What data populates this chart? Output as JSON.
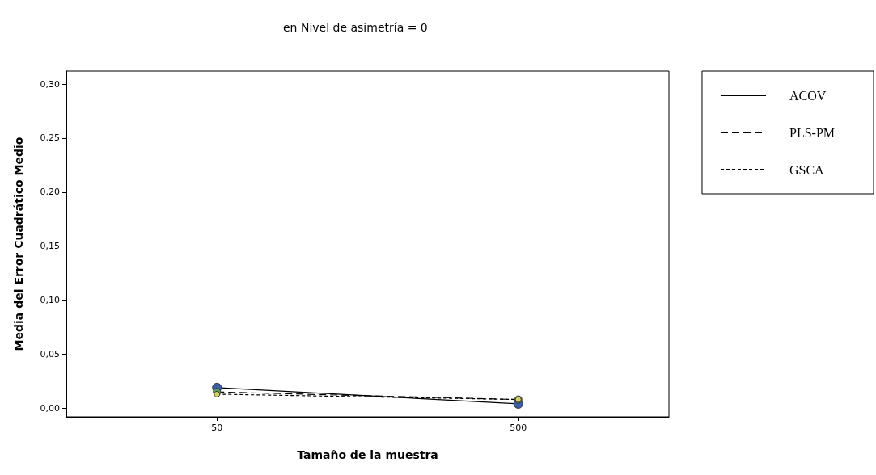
{
  "chart_data": {
    "type": "line",
    "title": "en Nivel de asimetría = 0",
    "xlabel": "Tamaño de la muestra",
    "ylabel": "Media del Error Cuadrático Medio",
    "categories": [
      "50",
      "500"
    ],
    "series": [
      {
        "name": "ACOV",
        "color": "#3a5fa8",
        "line_style": "solid",
        "values": [
          0.019,
          0.004
        ]
      },
      {
        "name": "PLS-PM",
        "color": "#5aa05a",
        "line_style": "dashed",
        "values": [
          0.015,
          0.008
        ]
      },
      {
        "name": "GSCA",
        "color": "#d8cf5a",
        "line_style": "dotted",
        "values": [
          0.013,
          0.008
        ]
      }
    ],
    "ylim": [
      -0.008,
      0.312
    ],
    "yticks": [
      {
        "value": 0,
        "label": "0,00"
      },
      {
        "value": 0.05,
        "label": "0,05"
      },
      {
        "value": 0.1,
        "label": "0,10"
      },
      {
        "value": 0.15,
        "label": "0,15"
      },
      {
        "value": 0.2,
        "label": "0,20"
      },
      {
        "value": 0.25,
        "label": "0,25"
      },
      {
        "value": 0.3,
        "label": "0,30"
      }
    ],
    "grid": false,
    "legend": "top right",
    "marker": "circle"
  }
}
